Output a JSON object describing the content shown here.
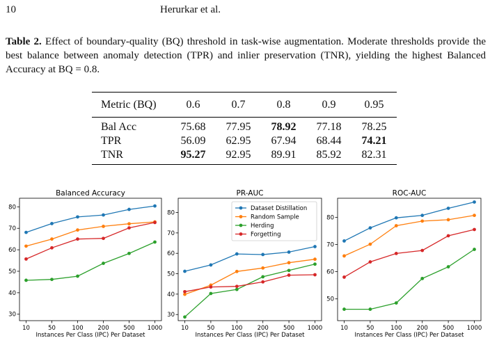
{
  "header": {
    "page_number": "10",
    "authors": "Herurkar et al."
  },
  "caption": {
    "label": "Table 2.",
    "text_before": " Effect of boundary-quality (BQ) threshold in task-wise augmentation. Moderate thresholds provide the best balance between anomaly detection (TPR) and inlier preservation (TNR), yielding the highest Balanced Accuracy at BQ ",
    "text_equals": "=",
    "text_value": " 0.8",
    "text_end": "."
  },
  "table": {
    "columns": [
      "Metric (BQ)",
      "0.6",
      "0.7",
      "0.8",
      "0.9",
      "0.95"
    ],
    "rows": [
      {
        "label": "Bal Acc",
        "values": [
          "75.68",
          "77.95",
          "78.92",
          "77.18",
          "78.25"
        ],
        "bold_index": 2
      },
      {
        "label": "TPR",
        "values": [
          "56.09",
          "62.95",
          "67.94",
          "68.44",
          "74.21"
        ],
        "bold_index": 4
      },
      {
        "label": "TNR",
        "values": [
          "95.27",
          "92.95",
          "89.91",
          "85.92",
          "82.31"
        ],
        "bold_index": 0
      }
    ]
  },
  "chart_data": [
    {
      "type": "line",
      "title": "Balanced Accuracy",
      "xlabel": "Instances Per Class (IPC) Per Dataset",
      "ylabel": "",
      "categories": [
        "10",
        "50",
        "100",
        "200",
        "500",
        "1000"
      ],
      "ylim": [
        27,
        84
      ],
      "yticks": [
        30,
        40,
        50,
        60,
        70,
        80
      ],
      "legend": null,
      "series": [
        {
          "name": "Dataset Distillation",
          "color": "#1f77b4",
          "values": [
            68.1,
            72.2,
            75.3,
            76.2,
            78.8,
            80.4
          ]
        },
        {
          "name": "Random Sample",
          "color": "#ff7f0e",
          "values": [
            61.7,
            65.0,
            69.2,
            70.9,
            72.1,
            73.0
          ]
        },
        {
          "name": "Herding",
          "color": "#2ca02c",
          "values": [
            45.8,
            46.2,
            47.7,
            53.7,
            58.3,
            63.6
          ]
        },
        {
          "name": "Forgetting",
          "color": "#d62728",
          "values": [
            55.7,
            60.9,
            65.0,
            65.3,
            70.2,
            72.7
          ]
        }
      ]
    },
    {
      "type": "line",
      "title": "PR-AUC",
      "xlabel": "Instances Per Class (IPC) Per Dataset",
      "ylabel": "",
      "categories": [
        "10",
        "50",
        "100",
        "200",
        "500",
        "1000"
      ],
      "ylim": [
        27,
        87
      ],
      "yticks": [
        30,
        40,
        50,
        60,
        70,
        80
      ],
      "legend": "top-right",
      "series": [
        {
          "name": "Dataset Distillation",
          "color": "#1f77b4",
          "values": [
            51.2,
            54.3,
            59.7,
            59.4,
            60.6,
            63.3
          ]
        },
        {
          "name": "Random Sample",
          "color": "#ff7f0e",
          "values": [
            39.9,
            44.4,
            51.1,
            52.8,
            55.4,
            57.1
          ]
        },
        {
          "name": "Herding",
          "color": "#2ca02c",
          "values": [
            28.8,
            40.3,
            42.3,
            48.5,
            51.6,
            54.7
          ]
        },
        {
          "name": "Forgetting",
          "color": "#d62728",
          "values": [
            41.2,
            43.5,
            43.8,
            46.0,
            49.3,
            49.5
          ]
        }
      ]
    },
    {
      "type": "line",
      "title": "ROC-AUC",
      "xlabel": "Instances Per Class (IPC) Per Dataset",
      "ylabel": "",
      "categories": [
        "10",
        "50",
        "100",
        "200",
        "500",
        "1000"
      ],
      "ylim": [
        42,
        87
      ],
      "yticks": [
        50,
        60,
        70,
        80
      ],
      "legend": null,
      "series": [
        {
          "name": "Dataset Distillation",
          "color": "#1f77b4",
          "values": [
            71.3,
            76.1,
            79.8,
            80.7,
            83.3,
            85.6
          ]
        },
        {
          "name": "Random Sample",
          "color": "#ff7f0e",
          "values": [
            65.8,
            70.1,
            76.9,
            78.6,
            79.1,
            80.7
          ]
        },
        {
          "name": "Herding",
          "color": "#2ca02c",
          "values": [
            46.2,
            46.2,
            48.5,
            57.5,
            61.8,
            68.2
          ]
        },
        {
          "name": "Forgetting",
          "color": "#d62728",
          "values": [
            58.0,
            63.6,
            66.7,
            67.8,
            73.2,
            75.5
          ]
        }
      ]
    }
  ]
}
